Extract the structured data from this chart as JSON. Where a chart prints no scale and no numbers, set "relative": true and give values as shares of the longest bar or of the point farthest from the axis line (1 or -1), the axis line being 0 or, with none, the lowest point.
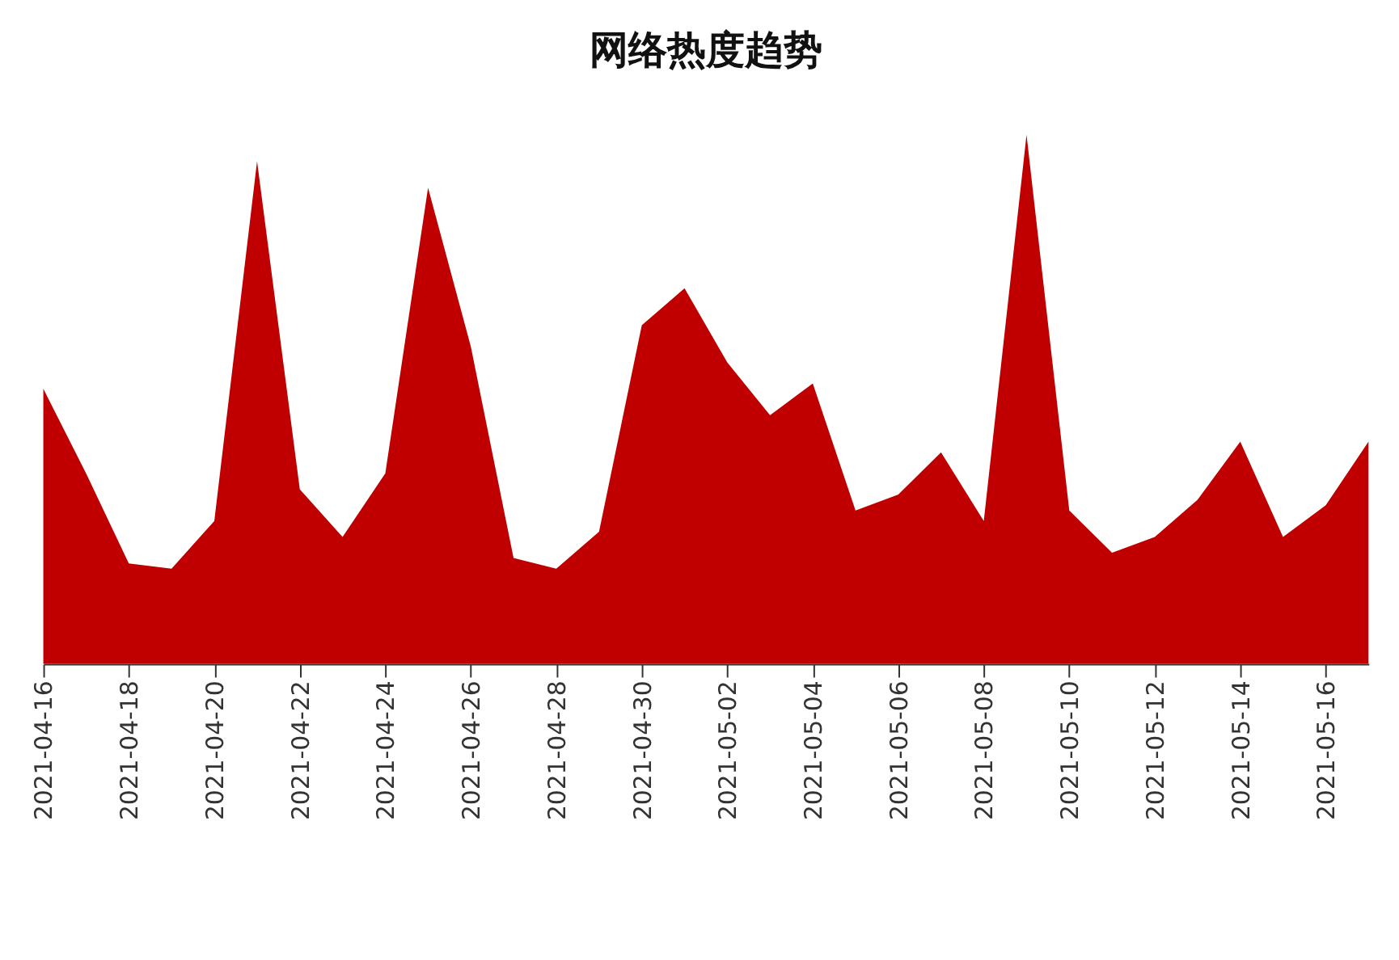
{
  "chart_data": {
    "type": "area",
    "title": "网络热度趋势",
    "relative": true,
    "color": "#c00000",
    "x": [
      "2021-04-16",
      "2021-04-17",
      "2021-04-18",
      "2021-04-19",
      "2021-04-20",
      "2021-04-21",
      "2021-04-22",
      "2021-04-23",
      "2021-04-24",
      "2021-04-25",
      "2021-04-26",
      "2021-04-27",
      "2021-04-28",
      "2021-04-29",
      "2021-04-30",
      "2021-05-01",
      "2021-05-02",
      "2021-05-03",
      "2021-05-04",
      "2021-05-05",
      "2021-05-06",
      "2021-05-07",
      "2021-05-08",
      "2021-05-09",
      "2021-05-10",
      "2021-05-11",
      "2021-05-12",
      "2021-05-13",
      "2021-05-14",
      "2021-05-15",
      "2021-05-16",
      "2021-05-17"
    ],
    "values": [
      0.52,
      0.36,
      0.19,
      0.18,
      0.27,
      0.95,
      0.33,
      0.24,
      0.36,
      0.9,
      0.6,
      0.2,
      0.18,
      0.25,
      0.64,
      0.71,
      0.57,
      0.47,
      0.53,
      0.29,
      0.32,
      0.4,
      0.27,
      1,
      0.29,
      0.21,
      0.24,
      0.31,
      0.42,
      0.24,
      0.3,
      0.42
    ],
    "xlim": [
      "2021-04-16",
      "2021-05-17"
    ],
    "xticks": [
      "2021-04-16",
      "2021-04-18",
      "2021-04-20",
      "2021-04-22",
      "2021-04-24",
      "2021-04-26",
      "2021-04-28",
      "2021-04-30",
      "2021-05-02",
      "2021-05-04",
      "2021-05-06",
      "2021-05-08",
      "2021-05-10",
      "2021-05-12",
      "2021-05-14",
      "2021-05-16"
    ],
    "grid": false
  }
}
